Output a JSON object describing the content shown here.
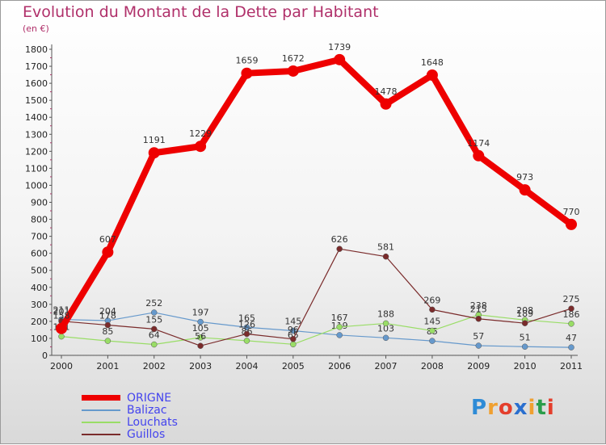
{
  "chart_data": {
    "type": "line",
    "title": "Evolution du Montant de la Dette par Habitant",
    "subtitle": "(en €)",
    "categories": [
      "2000",
      "2001",
      "2002",
      "2003",
      "2004",
      "2005",
      "2006",
      "2007",
      "2008",
      "2009",
      "2010",
      "2011"
    ],
    "ylim": [
      0,
      1800
    ],
    "yticks": [
      0,
      100,
      200,
      300,
      400,
      500,
      600,
      700,
      800,
      900,
      1000,
      1100,
      1200,
      1300,
      1400,
      1500,
      1600,
      1700,
      1800
    ],
    "grid": false,
    "legend_position": "bottom-left",
    "series": [
      {
        "name": "ORIGNE",
        "color": "#ee0000",
        "values": [
          158,
          607,
          1191,
          1229,
          1659,
          1672,
          1739,
          1478,
          1648,
          1174,
          973,
          770
        ]
      },
      {
        "name": "Balizac",
        "color": "#6699cc",
        "values": [
          211,
          204,
          252,
          197,
          165,
          145,
          119,
          103,
          85,
          57,
          51,
          47
        ]
      },
      {
        "name": "Louchats",
        "color": "#99dd66",
        "values": [
          111,
          85,
          64,
          105,
          86,
          65,
          167,
          188,
          145,
          238,
          208,
          186
        ]
      },
      {
        "name": "Guillos",
        "color": "#7a2b2b",
        "values": [
          201,
          178,
          155,
          56,
          126,
          96,
          626,
          581,
          269,
          215,
          189,
          275
        ]
      }
    ]
  },
  "logo": {
    "letters": [
      "P",
      "r",
      "o",
      "x",
      "i",
      "t",
      "i"
    ],
    "colors": [
      "#2e8bd6",
      "#f0a030",
      "#e43e2c",
      "#2a6fcf",
      "#f0a030",
      "#2a9d4a",
      "#e43e2c"
    ]
  }
}
